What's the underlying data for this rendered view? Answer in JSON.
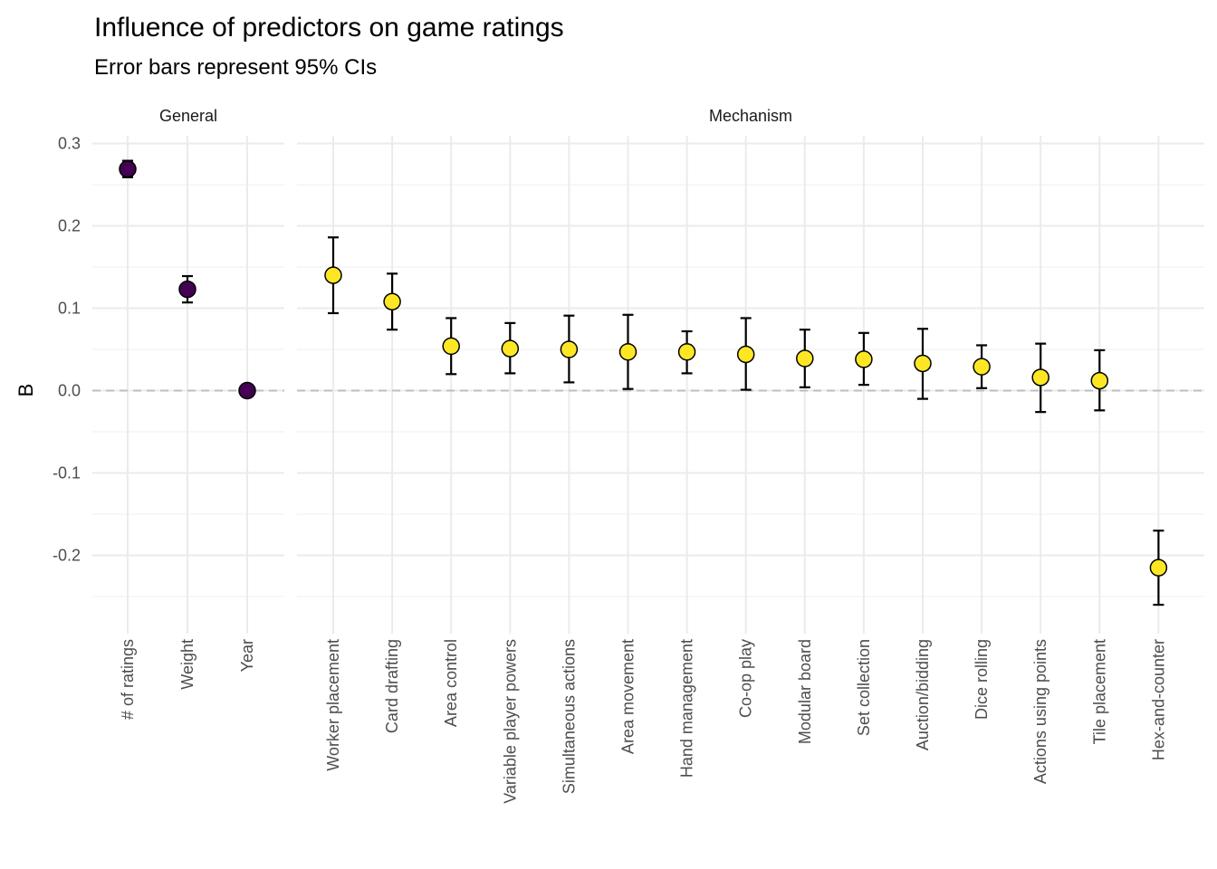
{
  "chart_data": {
    "type": "scatter",
    "title": "Influence of predictors on game ratings",
    "subtitle": "Error bars represent 95% CIs",
    "ylabel": "B",
    "xlabel": "",
    "ylim": [
      -0.29,
      0.31
    ],
    "yticks": [
      0.3,
      0.2,
      0.1,
      0.0,
      -0.1,
      -0.2
    ],
    "ytick_labels": [
      "0.3",
      "0.2",
      "0.1",
      "0.0",
      "-0.1",
      "-0.2"
    ],
    "reference_line": 0.0,
    "colors": {
      "General": "#440154",
      "Mechanism": "#fde725"
    },
    "facets": [
      {
        "name": "General",
        "points": [
          {
            "label": "# of ratings",
            "estimate": 0.269,
            "lower": 0.259,
            "upper": 0.279
          },
          {
            "label": "Weight",
            "estimate": 0.123,
            "lower": 0.107,
            "upper": 0.139
          },
          {
            "label": "Year",
            "estimate": 0.0,
            "lower": -0.002,
            "upper": 0.002
          }
        ]
      },
      {
        "name": "Mechanism",
        "points": [
          {
            "label": "Worker placement",
            "estimate": 0.14,
            "lower": 0.094,
            "upper": 0.186
          },
          {
            "label": "Card drafting",
            "estimate": 0.108,
            "lower": 0.074,
            "upper": 0.142
          },
          {
            "label": "Area control",
            "estimate": 0.054,
            "lower": 0.02,
            "upper": 0.088
          },
          {
            "label": "Variable player powers",
            "estimate": 0.051,
            "lower": 0.021,
            "upper": 0.082
          },
          {
            "label": "Simultaneous actions",
            "estimate": 0.05,
            "lower": 0.01,
            "upper": 0.091
          },
          {
            "label": "Area movement",
            "estimate": 0.047,
            "lower": 0.002,
            "upper": 0.092
          },
          {
            "label": "Hand management",
            "estimate": 0.047,
            "lower": 0.021,
            "upper": 0.072
          },
          {
            "label": "Co-op play",
            "estimate": 0.044,
            "lower": 0.001,
            "upper": 0.088
          },
          {
            "label": "Modular board",
            "estimate": 0.039,
            "lower": 0.004,
            "upper": 0.074
          },
          {
            "label": "Set collection",
            "estimate": 0.038,
            "lower": 0.007,
            "upper": 0.07
          },
          {
            "label": "Auction/bidding",
            "estimate": 0.033,
            "lower": -0.01,
            "upper": 0.075
          },
          {
            "label": "Dice rolling",
            "estimate": 0.029,
            "lower": 0.003,
            "upper": 0.055
          },
          {
            "label": "Actions using points",
            "estimate": 0.016,
            "lower": -0.026,
            "upper": 0.057
          },
          {
            "label": "Tile placement",
            "estimate": 0.012,
            "lower": -0.024,
            "upper": 0.049
          },
          {
            "label": "Hex-and-counter",
            "estimate": -0.215,
            "lower": -0.26,
            "upper": -0.17
          }
        ]
      }
    ]
  }
}
